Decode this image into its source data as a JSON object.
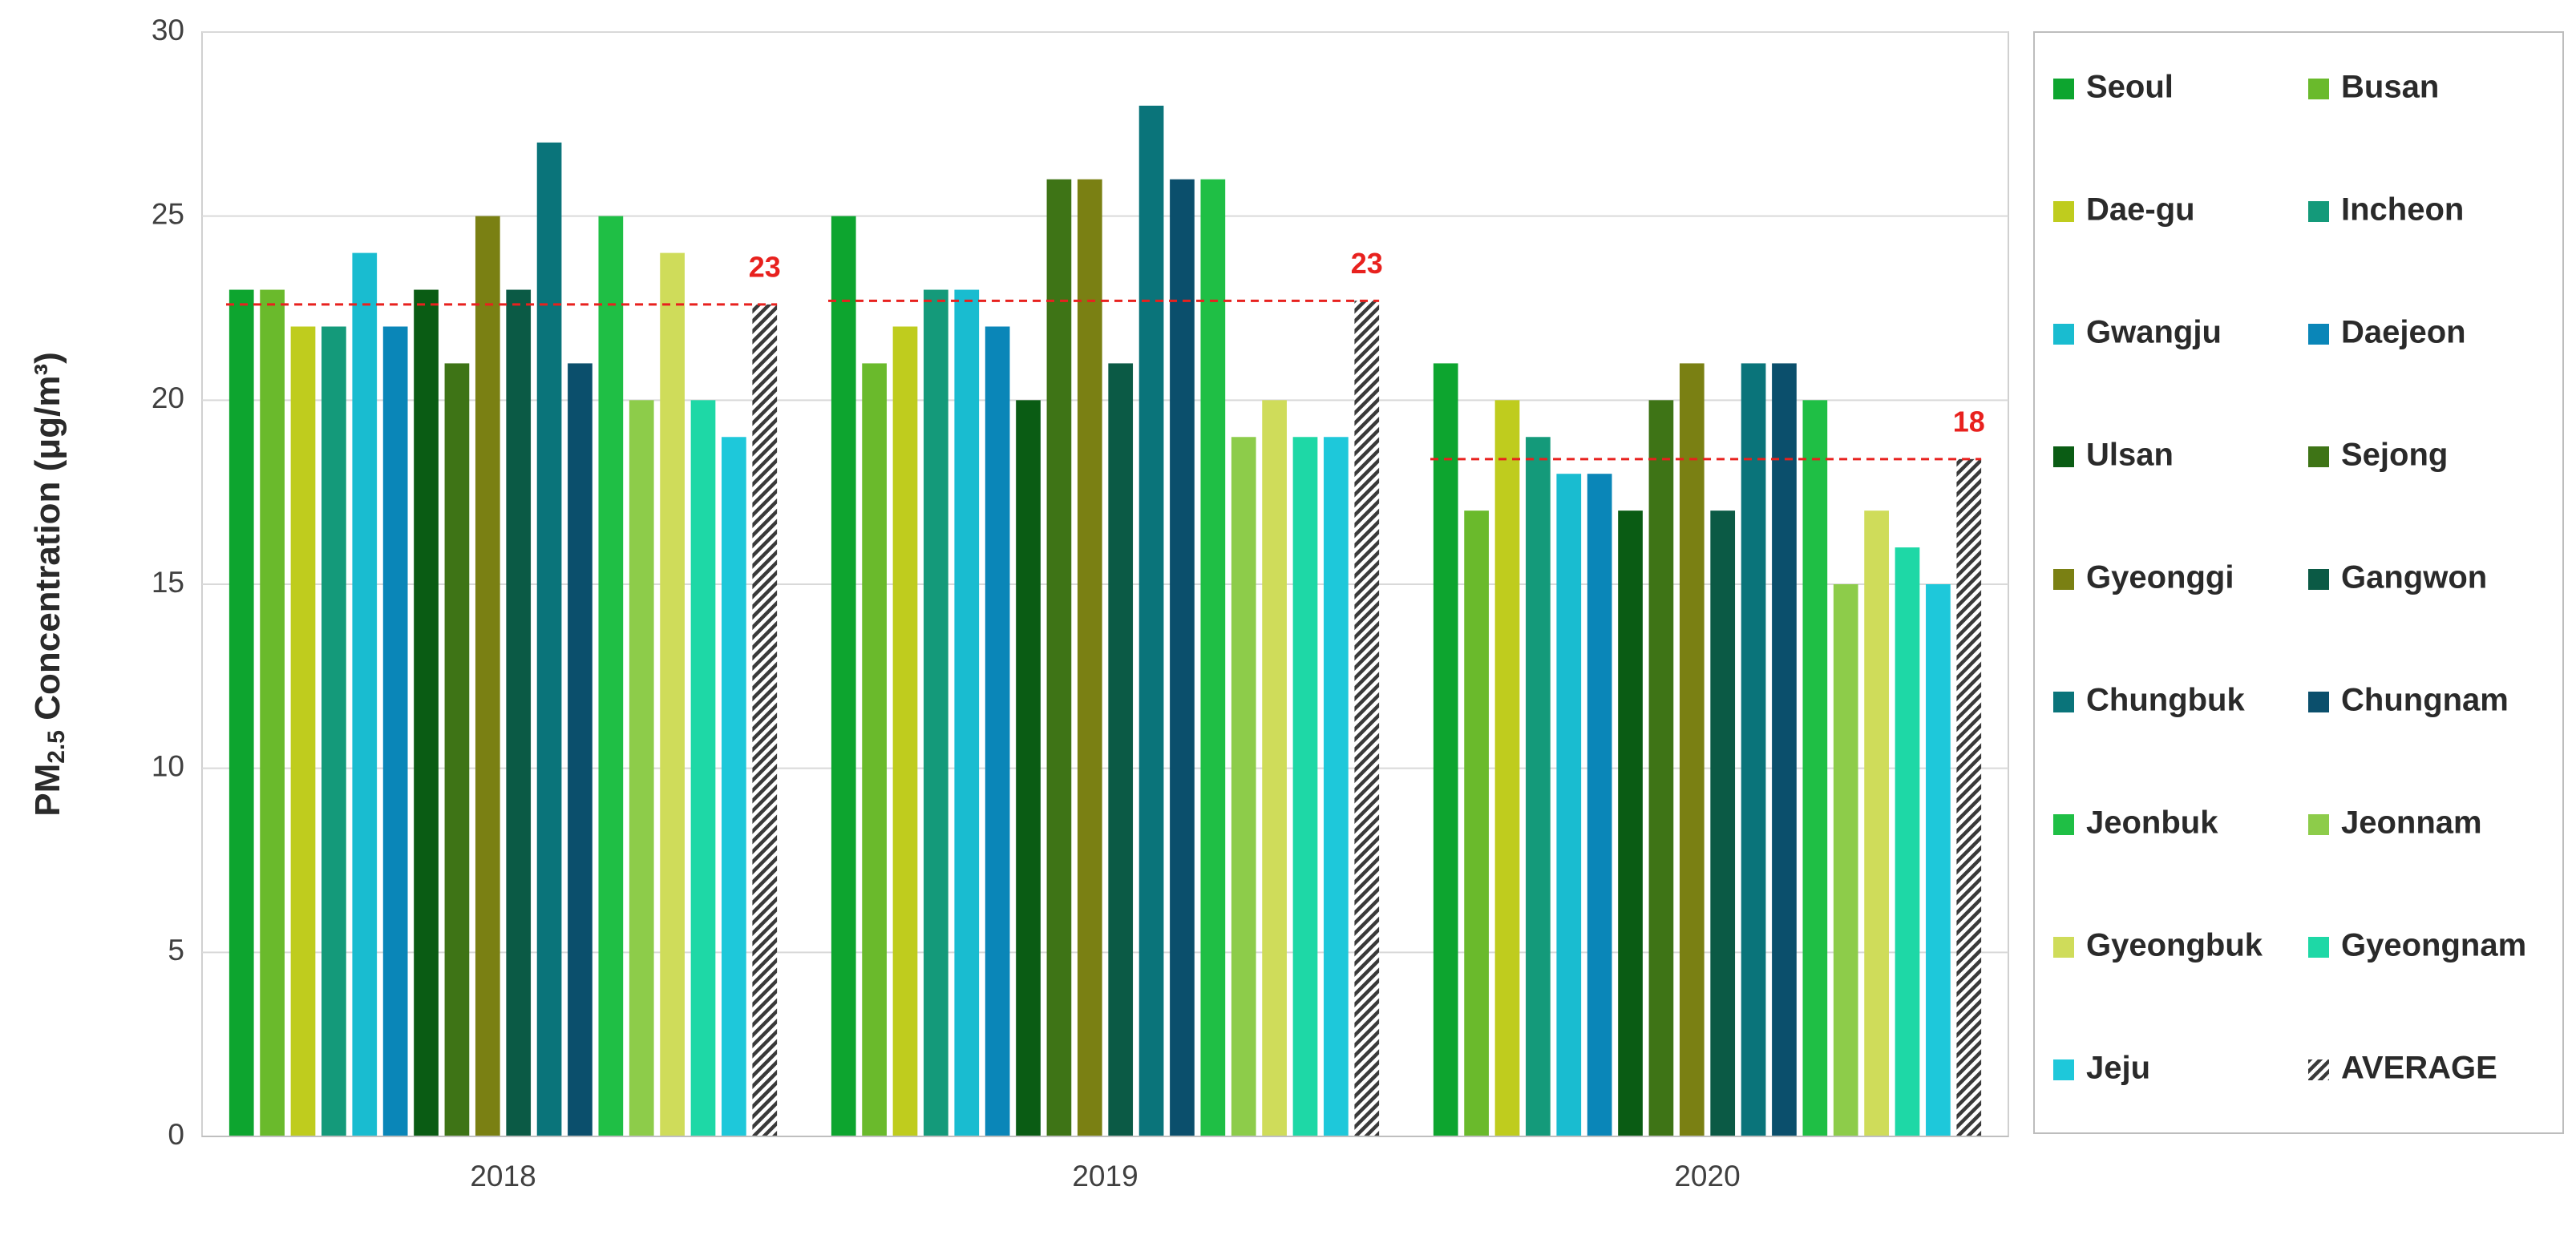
{
  "chart_data": {
    "type": "bar",
    "y_label": [
      "PM",
      "2.5",
      " Concentration (μg/m³)"
    ],
    "categories": [
      "2018",
      "2019",
      "2020"
    ],
    "ylim": [
      0,
      30
    ],
    "yticks": [
      0,
      5,
      10,
      15,
      20,
      25,
      30
    ],
    "grid": true,
    "series": [
      {
        "name": "Seoul",
        "color": "#0da52f",
        "values": [
          23,
          25,
          21
        ]
      },
      {
        "name": "Busan",
        "color": "#6aba2c",
        "values": [
          23,
          21,
          17
        ]
      },
      {
        "name": "Dae-gu",
        "color": "#bfcc1e",
        "values": [
          22,
          22,
          20
        ]
      },
      {
        "name": "Incheon",
        "color": "#149a7a",
        "values": [
          22,
          23,
          19
        ]
      },
      {
        "name": "Gwangju",
        "color": "#19bcd0",
        "values": [
          24,
          23,
          18
        ]
      },
      {
        "name": "Daejeon",
        "color": "#0a86b8",
        "values": [
          22,
          22,
          18
        ]
      },
      {
        "name": "Ulsan",
        "color": "#0a5c14",
        "values": [
          23,
          20,
          17
        ]
      },
      {
        "name": "Sejong",
        "color": "#3e7416",
        "values": [
          21,
          26,
          20
        ]
      },
      {
        "name": "Gyeonggi",
        "color": "#7a8013",
        "values": [
          25,
          26,
          21
        ]
      },
      {
        "name": "Gangwon",
        "color": "#0b5a45",
        "values": [
          23,
          21,
          17
        ]
      },
      {
        "name": "Chungbuk",
        "color": "#0a747a",
        "values": [
          27,
          28,
          21
        ]
      },
      {
        "name": "Chungnam",
        "color": "#0b4f6c",
        "values": [
          21,
          26,
          21
        ]
      },
      {
        "name": "Jeonbuk",
        "color": "#1fbf45",
        "values": [
          25,
          26,
          20
        ]
      },
      {
        "name": "Jeonnam",
        "color": "#8dcc4a",
        "values": [
          20,
          19,
          15
        ]
      },
      {
        "name": "Gyeongbuk",
        "color": "#cfdc5a",
        "values": [
          24,
          20,
          17
        ]
      },
      {
        "name": "Gyeongnam",
        "color": "#1ed8a6",
        "values": [
          20,
          19,
          16
        ]
      },
      {
        "name": "Jeju",
        "color": "#1ec8da",
        "values": [
          19,
          19,
          15
        ]
      },
      {
        "name": "AVERAGE",
        "color": "#3a3a3a",
        "pattern": "hatch",
        "reference_line": "#e8211e",
        "values": [
          22.6,
          22.7,
          18.4
        ],
        "value_labels": [
          "23",
          "23",
          "18"
        ]
      }
    ]
  }
}
